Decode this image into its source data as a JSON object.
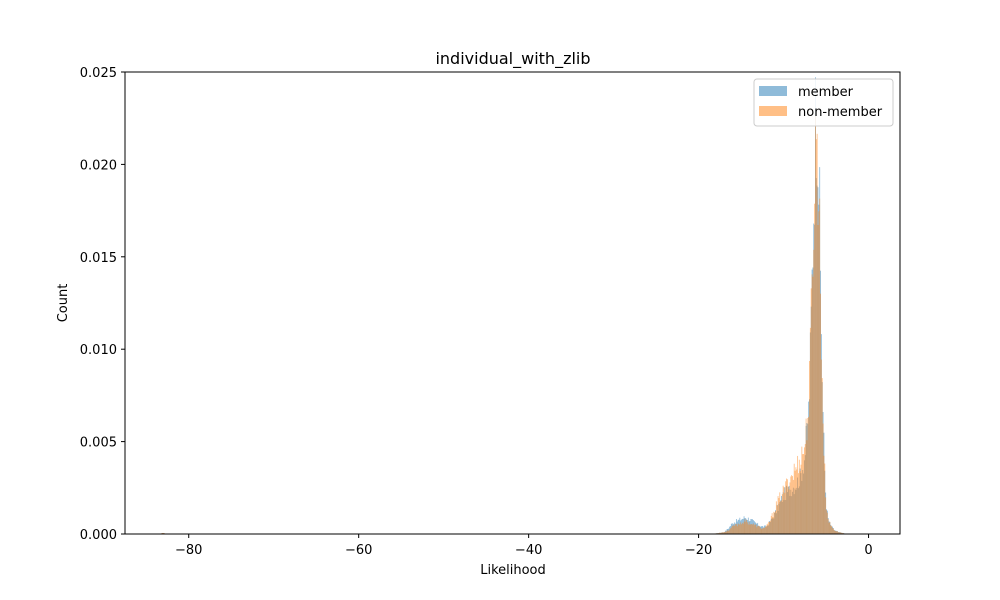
{
  "chart_data": {
    "type": "histogram",
    "title": "individual_with_zlib",
    "xlabel": "Likelihood",
    "ylabel": "Count",
    "xlim": [
      -87.5,
      3.7
    ],
    "ylim": [
      0,
      0.025
    ],
    "xticks": [
      -80,
      -60,
      -40,
      -20,
      0
    ],
    "xtick_labels": [
      "−80",
      "−60",
      "−40",
      "−20",
      "0"
    ],
    "yticks": [
      0.0,
      0.005,
      0.01,
      0.015,
      0.02,
      0.025
    ],
    "ytick_labels": [
      "0.000",
      "0.005",
      "0.010",
      "0.015",
      "0.020",
      "0.025"
    ],
    "legend": {
      "location": "upper right"
    },
    "series": [
      {
        "name": "member",
        "color": "#1f77b4",
        "alpha": 0.5,
        "bin_width": 0.1,
        "points": [
          [
            -83,
            0.0
          ],
          [
            -18.5,
            0.0
          ],
          [
            -17,
            0.0001
          ],
          [
            -16.5,
            0.0003
          ],
          [
            -16,
            0.0006
          ],
          [
            -15,
            0.0008
          ],
          [
            -14.5,
            0.0009
          ],
          [
            -14,
            0.0008
          ],
          [
            -13,
            0.0005
          ],
          [
            -12.5,
            0.0004
          ],
          [
            -12,
            0.0004
          ],
          [
            -11.5,
            0.0007
          ],
          [
            -11,
            0.0011
          ],
          [
            -10.5,
            0.0016
          ],
          [
            -10,
            0.0021
          ],
          [
            -9.5,
            0.0023
          ],
          [
            -9,
            0.0025
          ],
          [
            -8.5,
            0.0027
          ],
          [
            -8,
            0.0031
          ],
          [
            -7.5,
            0.0042
          ],
          [
            -7,
            0.007
          ],
          [
            -6.8,
            0.0105
          ],
          [
            -6.6,
            0.015
          ],
          [
            -6.4,
            0.019
          ],
          [
            -6.2,
            0.0232
          ],
          [
            -6,
            0.0225
          ],
          [
            -5.8,
            0.0185
          ],
          [
            -5.6,
            0.0125
          ],
          [
            -5.4,
            0.0075
          ],
          [
            -5.2,
            0.004
          ],
          [
            -5,
            0.0018
          ],
          [
            -4.8,
            0.0009
          ],
          [
            -4.5,
            0.0005
          ],
          [
            -4,
            0.0002
          ],
          [
            -3.5,
            0.0001
          ],
          [
            -3,
            5e-05
          ],
          [
            -2.5,
            0.0
          ]
        ]
      },
      {
        "name": "non-member",
        "color": "#ff7f0e",
        "alpha": 0.5,
        "bin_width": 0.1,
        "points": [
          [
            -83,
            0.0
          ],
          [
            -18.5,
            0.0
          ],
          [
            -17,
            0.0001
          ],
          [
            -16.5,
            0.0002
          ],
          [
            -16,
            0.0004
          ],
          [
            -15,
            0.0006
          ],
          [
            -14.5,
            0.0007
          ],
          [
            -14,
            0.0006
          ],
          [
            -13,
            0.0004
          ],
          [
            -12.5,
            0.0003
          ],
          [
            -12,
            0.0004
          ],
          [
            -11.5,
            0.0008
          ],
          [
            -11,
            0.0014
          ],
          [
            -10.5,
            0.0019
          ],
          [
            -10,
            0.0023
          ],
          [
            -9.5,
            0.0028
          ],
          [
            -9,
            0.0032
          ],
          [
            -8.5,
            0.0036
          ],
          [
            -8,
            0.0041
          ],
          [
            -7.5,
            0.0048
          ],
          [
            -7,
            0.0072
          ],
          [
            -6.8,
            0.0108
          ],
          [
            -6.6,
            0.0148
          ],
          [
            -6.4,
            0.0185
          ],
          [
            -6.2,
            0.0215
          ],
          [
            -6,
            0.0208
          ],
          [
            -5.8,
            0.0175
          ],
          [
            -5.6,
            0.012
          ],
          [
            -5.4,
            0.0072
          ],
          [
            -5.2,
            0.0038
          ],
          [
            -5,
            0.0017
          ],
          [
            -4.8,
            0.0009
          ],
          [
            -4.5,
            0.0005
          ],
          [
            -4,
            0.0002
          ],
          [
            -3.5,
            0.0001
          ],
          [
            -3,
            5e-05
          ],
          [
            -2.5,
            0.0
          ]
        ]
      }
    ]
  }
}
